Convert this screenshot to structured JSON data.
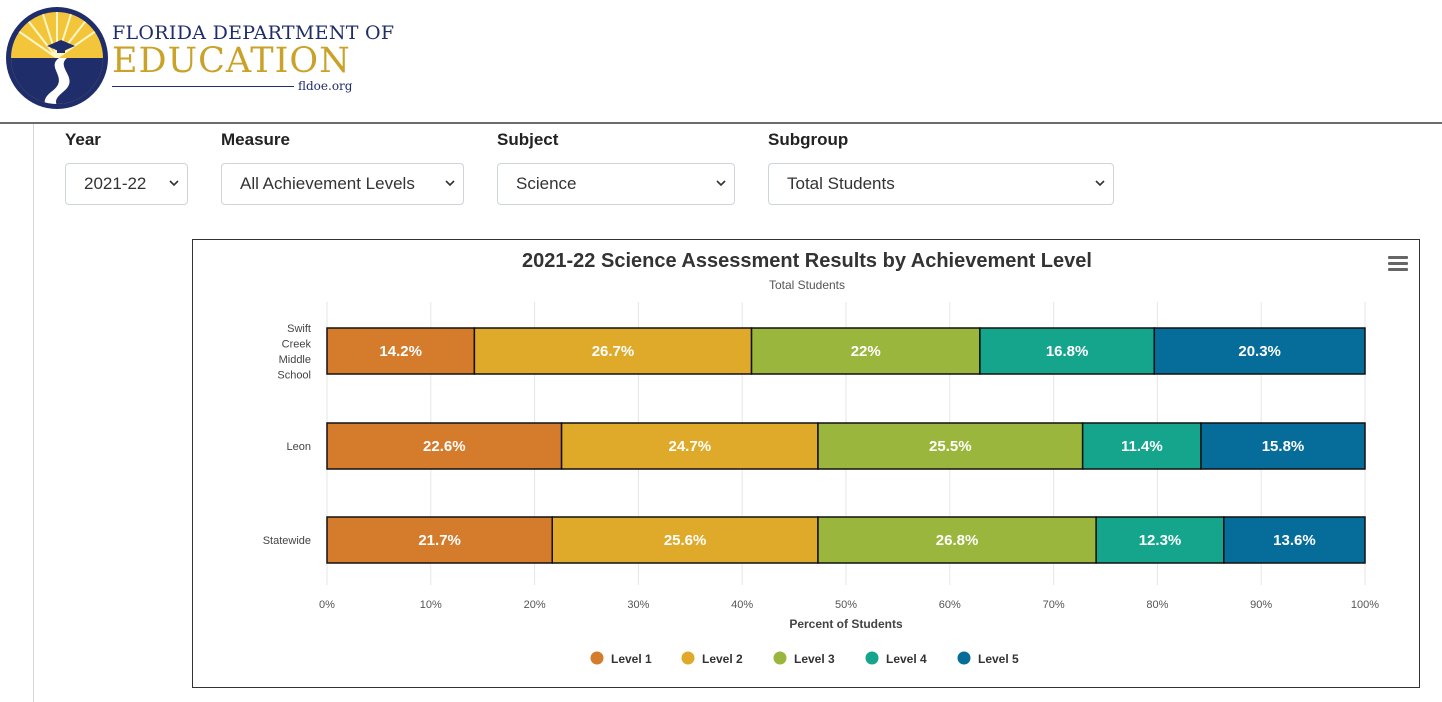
{
  "header": {
    "logo_line1": "FLORIDA DEPARTMENT OF",
    "logo_line2": "EDUCATION",
    "logo_url": "fldoe.org"
  },
  "filters": [
    {
      "label": "Year",
      "value": "2021-22"
    },
    {
      "label": "Measure",
      "value": "All Achievement Levels"
    },
    {
      "label": "Subject",
      "value": "Science"
    },
    {
      "label": "Subgroup",
      "value": "Total Students"
    }
  ],
  "colors": {
    "level1": "#d47b2c",
    "level2": "#dfaa2a",
    "level3": "#9bb63d",
    "level4": "#14a58c",
    "level5": "#066c99"
  },
  "chart_data": {
    "type": "bar",
    "orientation": "horizontal",
    "stacked": "percent",
    "title": "2021-22 Science Assessment Results by Achievement Level",
    "subtitle": "Total Students",
    "xlabel": "Percent of Students",
    "ylabel": "",
    "xlim": [
      0,
      100
    ],
    "x_ticks": [
      "0%",
      "10%",
      "20%",
      "30%",
      "40%",
      "50%",
      "60%",
      "70%",
      "80%",
      "90%",
      "100%"
    ],
    "grid": true,
    "legend_position": "bottom-center",
    "categories": [
      [
        "Swift",
        "Creek",
        "Middle",
        "School"
      ],
      [
        "Leon"
      ],
      [
        "Statewide"
      ]
    ],
    "series": [
      {
        "name": "Level 1",
        "color": "#d47b2c",
        "values": [
          14.2,
          22.6,
          21.7
        ]
      },
      {
        "name": "Level 2",
        "color": "#dfaa2a",
        "values": [
          26.7,
          24.7,
          25.6
        ]
      },
      {
        "name": "Level 3",
        "color": "#9bb63d",
        "values": [
          22,
          25.5,
          26.8
        ]
      },
      {
        "name": "Level 4",
        "color": "#14a58c",
        "values": [
          16.8,
          11.4,
          12.3
        ]
      },
      {
        "name": "Level 5",
        "color": "#066c99",
        "values": [
          20.3,
          15.8,
          13.6
        ]
      }
    ]
  }
}
